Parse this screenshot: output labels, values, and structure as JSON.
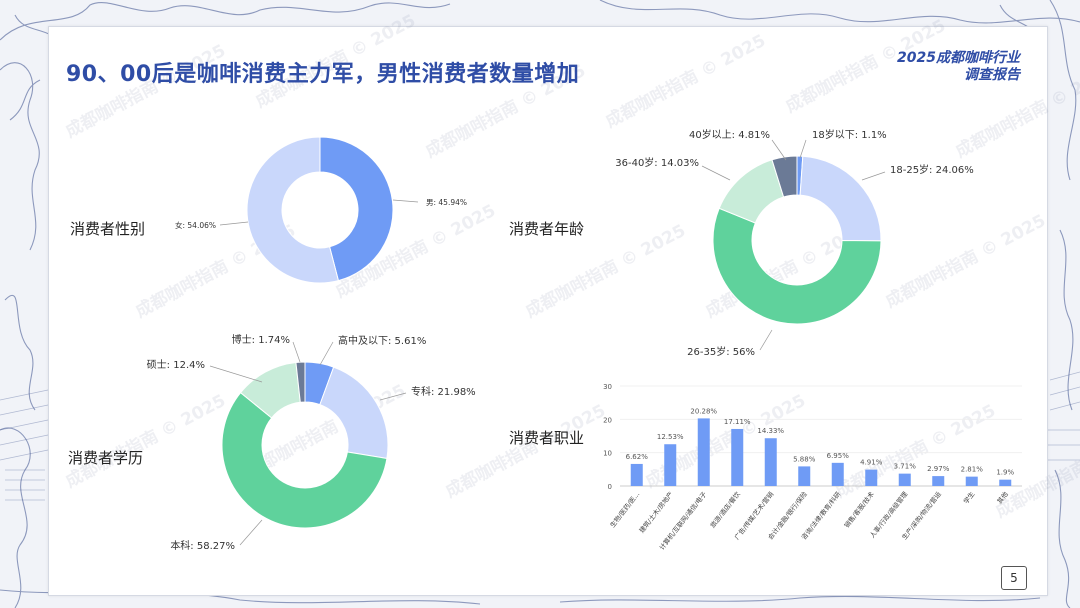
{
  "title": "90、00后是咖啡消费主力军，男性消费者数量增加",
  "brand": {
    "line1": "2025成都咖啡行业",
    "line2": "调查报告"
  },
  "page_number": "5",
  "watermark": "成都咖啡指南 © 2025",
  "sections": {
    "gender": "消费者性别",
    "age": "消费者年龄",
    "education": "消费者学历",
    "occupation": "消费者职业"
  },
  "chart_data": [
    {
      "type": "pie",
      "title": "消费者性别",
      "slices": [
        {
          "label": "男: 45.94%",
          "value": 45.94,
          "color": "#6f9bf5"
        },
        {
          "label": "女: 54.06%",
          "value": 54.06,
          "color": "#c9d7fb"
        }
      ]
    },
    {
      "type": "pie",
      "title": "消费者年龄",
      "slices": [
        {
          "label": "18岁以下: 1.1%",
          "value": 1.1,
          "color": "#6f9bf5"
        },
        {
          "label": "18-25岁: 24.06%",
          "value": 24.06,
          "color": "#c9d7fb"
        },
        {
          "label": "26-35岁: 56%",
          "value": 56,
          "color": "#5fd29c"
        },
        {
          "label": "36-40岁: 14.03%",
          "value": 14.03,
          "color": "#c8ecd9"
        },
        {
          "label": "40岁以上: 4.81%",
          "value": 4.81,
          "color": "#6b7a96"
        }
      ]
    },
    {
      "type": "pie",
      "title": "消费者学历",
      "slices": [
        {
          "label": "高中及以下: 5.61%",
          "value": 5.61,
          "color": "#6f9bf5"
        },
        {
          "label": "专科: 21.98%",
          "value": 21.98,
          "color": "#c9d7fb"
        },
        {
          "label": "本科: 58.27%",
          "value": 58.27,
          "color": "#5fd29c"
        },
        {
          "label": "硕士: 12.4%",
          "value": 12.4,
          "color": "#c8ecd9"
        },
        {
          "label": "博士: 1.74%",
          "value": 1.74,
          "color": "#6b7a96"
        }
      ]
    },
    {
      "type": "bar",
      "title": "消费者职业",
      "categories": [
        "生物/医药/医...",
        "建筑/土木/房地产",
        "计算机/互联网/通信/电子",
        "旅游/酒店/餐饮",
        "广告/传媒/艺术/营销",
        "会计/金融/银行/保险",
        "咨询/法律/教育/科研",
        "销售/客服/技术",
        "人事/行政/高级管理",
        "生产/采购/物流/营运",
        "学生",
        "其他"
      ],
      "values": [
        6.62,
        12.53,
        20.28,
        17.11,
        14.33,
        5.88,
        6.95,
        4.91,
        3.71,
        2.97,
        2.81,
        1.9
      ],
      "value_labels": [
        "6.62%",
        "12.53%",
        "20.28%",
        "17.11%",
        "14.33%",
        "5.88%",
        "6.95%",
        "4.91%",
        "3.71%",
        "2.97%",
        "2.81%",
        "1.9%"
      ],
      "yticks": [
        "0",
        "10",
        "20",
        "30"
      ],
      "ylim": [
        0,
        30
      ],
      "color": "#6f9bf5"
    }
  ]
}
